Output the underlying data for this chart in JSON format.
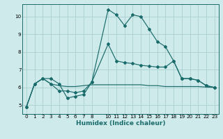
{
  "background_color": "#ceeaea",
  "grid_color": "#aacfcf",
  "line_color": "#1a6b6b",
  "xlabel": "Humidex (Indice chaleur)",
  "xlim": [
    -0.5,
    23.5
  ],
  "ylim": [
    4.5,
    10.7
  ],
  "yticks": [
    5,
    6,
    7,
    8,
    9,
    10
  ],
  "xticks": [
    0,
    1,
    2,
    3,
    4,
    5,
    6,
    7,
    8,
    10,
    11,
    12,
    13,
    14,
    15,
    16,
    17,
    18,
    19,
    20,
    21,
    22,
    23
  ],
  "xtick_labels": [
    "0",
    "1",
    "2",
    "3",
    "4",
    "5",
    "6",
    "7",
    "8",
    "10",
    "11",
    "12",
    "13",
    "14",
    "15",
    "16",
    "17",
    "18",
    "19",
    "20",
    "21",
    "22",
    "23"
  ],
  "line1_x": [
    0,
    1,
    2,
    3,
    4,
    5,
    6,
    7,
    8,
    10,
    11,
    12,
    13,
    14,
    15,
    16,
    17,
    18,
    19,
    20,
    21,
    22,
    23
  ],
  "line1_y": [
    4.9,
    6.2,
    6.5,
    6.5,
    6.2,
    5.4,
    5.5,
    5.6,
    6.3,
    10.4,
    10.1,
    9.5,
    10.1,
    10.0,
    9.3,
    8.6,
    8.3,
    7.5,
    6.5,
    6.5,
    6.4,
    6.1,
    6.0
  ],
  "line2_x": [
    0,
    1,
    2,
    3,
    4,
    5,
    6,
    7,
    8,
    10,
    11,
    12,
    13,
    14,
    15,
    16,
    17,
    18,
    19,
    20,
    21,
    22,
    23
  ],
  "line2_y": [
    4.9,
    6.2,
    6.5,
    6.2,
    5.8,
    5.8,
    5.7,
    5.8,
    6.3,
    8.45,
    7.5,
    7.4,
    7.35,
    7.25,
    7.2,
    7.15,
    7.15,
    7.5,
    6.5,
    6.5,
    6.4,
    6.1,
    6.0
  ],
  "line3_x": [
    0,
    1,
    2,
    3,
    4,
    5,
    6,
    7,
    8,
    10,
    11,
    12,
    13,
    14,
    15,
    16,
    17,
    18,
    19,
    20,
    21,
    22,
    23
  ],
  "line3_y": [
    4.9,
    6.2,
    6.5,
    6.2,
    6.1,
    6.05,
    6.05,
    6.1,
    6.15,
    6.15,
    6.15,
    6.15,
    6.15,
    6.15,
    6.1,
    6.1,
    6.05,
    6.05,
    6.05,
    6.05,
    6.05,
    6.02,
    6.0
  ],
  "marker_size": 2.0,
  "line_width": 0.85,
  "tick_fontsize": 5.2,
  "xlabel_fontsize": 6.5
}
